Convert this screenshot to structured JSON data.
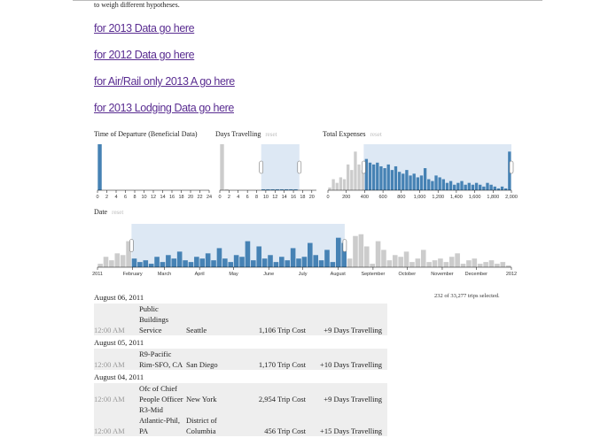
{
  "intro": "to weigh different hypotheses.",
  "links": [
    "for 2013 Data go here",
    "for 2012 Data go here",
    "for Air/Rail only 2013 A go here",
    "for 2013 Lodging Data go here"
  ],
  "charts": [
    {
      "title": "Time of Departure (Beneficial Data)",
      "bins": [
        0,
        1,
        2,
        3,
        4,
        5,
        6,
        7,
        8,
        9,
        10,
        11,
        12,
        13,
        14,
        15,
        16,
        17,
        18,
        19,
        20,
        21,
        22,
        23,
        24
      ],
      "values": [
        50,
        0,
        0,
        0,
        0,
        0,
        0,
        0,
        0,
        0,
        0,
        0,
        0,
        0,
        0,
        0,
        0,
        0,
        0,
        0,
        0,
        0,
        0,
        0
      ],
      "xlim": [
        0,
        24
      ],
      "ylim": [
        0,
        50
      ],
      "xticks": [
        0,
        2,
        4,
        6,
        8,
        10,
        12,
        14,
        16,
        18,
        20,
        22,
        24
      ]
    },
    {
      "title": "Days Travelling",
      "reset": "reset",
      "bins": [
        0,
        1,
        2,
        3,
        4,
        5,
        6,
        7,
        8,
        9,
        10,
        11,
        12,
        13,
        14,
        15,
        16,
        17,
        18,
        19,
        20,
        21
      ],
      "values": [
        50,
        1,
        0,
        0,
        0,
        0,
        0,
        0,
        0,
        1,
        1,
        1,
        1,
        1,
        1,
        1,
        1,
        0,
        0,
        0,
        0
      ],
      "xlim": [
        0,
        21
      ],
      "ylim": [
        0,
        50
      ],
      "xticks": [
        0,
        2,
        4,
        6,
        8,
        10,
        12,
        14,
        16,
        18,
        20
      ],
      "brush": [
        9,
        17.3
      ]
    },
    {
      "title": "Total Expenses",
      "reset": "reset",
      "bins": [
        0,
        40,
        80,
        120,
        160,
        200,
        240,
        280,
        320,
        360,
        400,
        440,
        480,
        520,
        560,
        600,
        640,
        680,
        720,
        760,
        800,
        840,
        880,
        920,
        960,
        1000,
        1040,
        1080,
        1120,
        1160,
        1200,
        1240,
        1280,
        1320,
        1360,
        1400,
        1440,
        1480,
        1520,
        1560,
        1600,
        1640,
        1680,
        1720,
        1760,
        1800,
        1840,
        1880,
        1920,
        1960,
        2000
      ],
      "values": [
        3,
        12,
        8,
        14,
        12,
        28,
        22,
        42,
        28,
        22,
        34,
        30,
        28,
        30,
        26,
        24,
        28,
        22,
        26,
        20,
        18,
        22,
        16,
        18,
        14,
        16,
        24,
        12,
        10,
        16,
        14,
        12,
        8,
        10,
        6,
        8,
        10,
        6,
        8,
        6,
        8,
        6,
        4,
        8,
        6,
        4,
        2,
        4,
        2,
        42
      ],
      "xlim": [
        0,
        2000
      ],
      "ylim": [
        0,
        50
      ],
      "xticks": [
        0,
        200,
        400,
        600,
        800,
        {
          "value": 1000,
          "label": "1,000"
        },
        {
          "value": 1200,
          "label": "1,200"
        },
        {
          "value": 1400,
          "label": "1,400"
        },
        {
          "value": 1600,
          "label": "1,600"
        },
        {
          "value": 1800,
          "label": "1,800"
        },
        {
          "value": 2000,
          "label": "2,000"
        }
      ],
      "brush": [
        390,
        2000
      ]
    },
    {
      "title": "Date",
      "reset": "reset",
      "bins": [
        0,
        5,
        10,
        15,
        20,
        25,
        30,
        35,
        40,
        45,
        50,
        55,
        60,
        65,
        70,
        75,
        80,
        85,
        90,
        95,
        100,
        105,
        110,
        115,
        120,
        125,
        130,
        135,
        140,
        145,
        150,
        155,
        160,
        165,
        170,
        175,
        180,
        185,
        190,
        195,
        200,
        205,
        210,
        215,
        220,
        225,
        230,
        235,
        240,
        245,
        250,
        255,
        260,
        265,
        270,
        275,
        280,
        285,
        290,
        295,
        300,
        305,
        310,
        315,
        320,
        325,
        330,
        335,
        340,
        345,
        350,
        355,
        360,
        365
      ],
      "values": [
        4,
        12,
        8,
        16,
        14,
        30,
        10,
        6,
        8,
        4,
        12,
        6,
        14,
        10,
        18,
        8,
        6,
        12,
        10,
        16,
        8,
        22,
        10,
        6,
        14,
        12,
        30,
        8,
        24,
        10,
        14,
        6,
        12,
        8,
        22,
        10,
        12,
        28,
        14,
        8,
        20,
        6,
        34,
        28,
        10,
        36,
        38,
        24,
        4,
        30,
        20,
        8,
        14,
        12,
        18,
        6,
        10,
        20,
        6,
        8,
        10,
        6,
        12,
        16,
        4,
        8,
        10,
        4,
        6,
        8,
        4,
        6,
        2
      ],
      "xlim": [
        0,
        365
      ],
      "ylim": [
        0,
        50
      ],
      "xticks": [
        {
          "value": 0,
          "label": "2011"
        },
        {
          "value": 31,
          "label": "February"
        },
        {
          "value": 59,
          "label": "March"
        },
        {
          "value": 90,
          "label": "April"
        },
        {
          "value": 120,
          "label": "May"
        },
        {
          "value": 151,
          "label": "June"
        },
        {
          "value": 181,
          "label": "July"
        },
        {
          "value": 212,
          "label": "August"
        },
        {
          "value": 243,
          "label": "September"
        },
        {
          "value": 273,
          "label": "October"
        },
        {
          "value": 304,
          "label": "November"
        },
        {
          "value": 334,
          "label": "December"
        },
        {
          "value": 365,
          "label": "2012"
        }
      ],
      "brush": [
        30,
        218
      ]
    }
  ],
  "selection": "232 of 33,277 trips selected.",
  "groups": [
    {
      "date": "August 06, 2011",
      "rows": [
        {
          "time": "12:00 AM",
          "name": "Public Buildings Service",
          "city": "Seattle",
          "cost": "1,106 Trip Cost",
          "days": "+9 Days Travelling"
        }
      ]
    },
    {
      "date": "August 05, 2011",
      "rows": [
        {
          "time": "12:00 AM",
          "name": "R9-Pacific Rim-SFO, CA",
          "city": "San Diego",
          "cost": "1,170 Trip Cost",
          "days": "+10 Days Travelling"
        }
      ]
    },
    {
      "date": "August 04, 2011",
      "rows": [
        {
          "time": "12:00 AM",
          "name": "Ofc of Chief People Officer",
          "city": "New York",
          "cost": "2,954 Trip Cost",
          "days": "+9 Days Travelling"
        },
        {
          "time": "12:00 AM",
          "name": "R3-Mid Atlantic-Phil, PA",
          "city": "District of Columbia",
          "cost": "456 Trip Cost",
          "days": "+15 Days Travelling"
        }
      ]
    }
  ]
}
